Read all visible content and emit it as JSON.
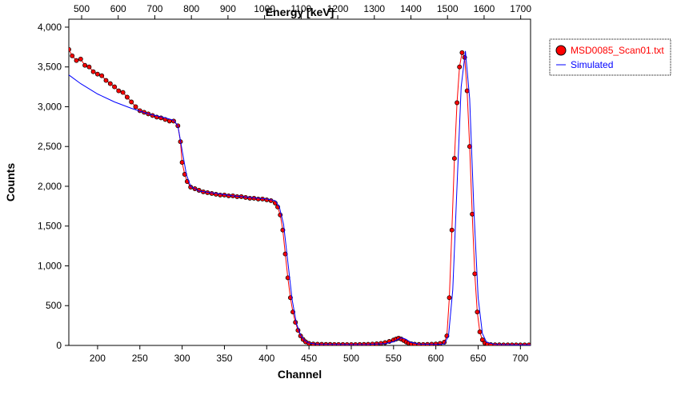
{
  "chart_data": {
    "type": "scatter",
    "title": "",
    "xlabel": "Channel",
    "ylabel": "Counts",
    "x2label": "Energy [keV]",
    "xlim": [
      166,
      712
    ],
    "ylim": [
      0,
      4100
    ],
    "x2lim": [
      465,
      1727
    ],
    "xticks": [
      200,
      250,
      300,
      350,
      400,
      450,
      500,
      550,
      600,
      650,
      700
    ],
    "xtick_labels": [
      "200",
      "250",
      "300",
      "350",
      "400",
      "450",
      "500",
      "550",
      "600",
      "650",
      "700"
    ],
    "yticks": [
      0,
      500,
      1000,
      1500,
      2000,
      2500,
      3000,
      3500,
      4000
    ],
    "ytick_labels": [
      "0",
      "500",
      "1,000",
      "1,500",
      "2,000",
      "2,500",
      "3,000",
      "3,500",
      "4,000"
    ],
    "x2ticks": [
      500,
      600,
      700,
      800,
      900,
      1000,
      1100,
      1200,
      1300,
      1400,
      1500,
      1600,
      1700
    ],
    "x2tick_labels": [
      "500",
      "600",
      "700",
      "800",
      "900",
      "1000",
      "1100",
      "1200",
      "1300",
      "1400",
      "1500",
      "1600",
      "1700"
    ],
    "grid": false,
    "legend_position": "right-top",
    "series": [
      {
        "name": "MSD0085_Scan01.txt",
        "kind": "markers",
        "color": "#ff0000",
        "edge_color": "#000000",
        "x": [
          166,
          170,
          175,
          180,
          185,
          190,
          195,
          200,
          205,
          210,
          215,
          220,
          225,
          230,
          235,
          240,
          245,
          250,
          255,
          260,
          265,
          270,
          275,
          280,
          285,
          290,
          295,
          298,
          300,
          303,
          306,
          310,
          315,
          320,
          325,
          330,
          335,
          340,
          345,
          350,
          355,
          360,
          365,
          370,
          375,
          380,
          385,
          390,
          395,
          400,
          405,
          410,
          413,
          416,
          419,
          422,
          425,
          428,
          431,
          434,
          437,
          440,
          443,
          446,
          450,
          455,
          460,
          465,
          470,
          475,
          480,
          485,
          490,
          495,
          500,
          505,
          510,
          515,
          520,
          525,
          530,
          535,
          540,
          545,
          550,
          553,
          556,
          559,
          562,
          565,
          568,
          571,
          575,
          580,
          585,
          590,
          595,
          600,
          605,
          610,
          613,
          616,
          619,
          622,
          625,
          628,
          631,
          634,
          637,
          640,
          643,
          646,
          649,
          652,
          655,
          658,
          661,
          665,
          670,
          675,
          680,
          685,
          690,
          695,
          700,
          705,
          710
        ],
        "y": [
          3720,
          3640,
          3580,
          3600,
          3520,
          3500,
          3440,
          3410,
          3390,
          3330,
          3290,
          3250,
          3200,
          3180,
          3120,
          3060,
          3000,
          2950,
          2930,
          2910,
          2890,
          2870,
          2860,
          2840,
          2820,
          2820,
          2760,
          2560,
          2300,
          2150,
          2060,
          1990,
          1970,
          1950,
          1930,
          1920,
          1910,
          1900,
          1890,
          1890,
          1880,
          1880,
          1870,
          1870,
          1860,
          1850,
          1850,
          1840,
          1840,
          1830,
          1820,
          1790,
          1740,
          1640,
          1450,
          1150,
          850,
          600,
          420,
          290,
          190,
          120,
          75,
          45,
          25,
          18,
          15,
          14,
          13,
          13,
          12,
          12,
          12,
          11,
          11,
          11,
          12,
          13,
          14,
          17,
          20,
          26,
          35,
          50,
          68,
          80,
          90,
          80,
          62,
          42,
          28,
          20,
          15,
          13,
          12,
          13,
          15,
          18,
          25,
          40,
          120,
          600,
          1450,
          2350,
          3050,
          3500,
          3680,
          3620,
          3200,
          2500,
          1650,
          900,
          420,
          170,
          70,
          30,
          15,
          10,
          8,
          8,
          7,
          7,
          7,
          7,
          7,
          7,
          7
        ]
      },
      {
        "name": "Simulated",
        "kind": "line",
        "color": "#0000ff",
        "x": [
          166,
          180,
          200,
          220,
          240,
          260,
          280,
          290,
          295,
          300,
          305,
          310,
          320,
          340,
          360,
          380,
          400,
          410,
          415,
          420,
          425,
          430,
          435,
          440,
          445,
          450,
          460,
          480,
          500,
          520,
          540,
          550,
          555,
          560,
          565,
          570,
          580,
          600,
          610,
          615,
          620,
          625,
          630,
          635,
          640,
          645,
          650,
          655,
          660,
          670,
          690,
          712
        ],
        "y": [
          3400,
          3290,
          3160,
          3060,
          2980,
          2910,
          2860,
          2830,
          2760,
          2450,
          2150,
          2000,
          1940,
          1910,
          1880,
          1860,
          1840,
          1820,
          1740,
          1520,
          1050,
          580,
          280,
          130,
          60,
          30,
          14,
          12,
          11,
          13,
          22,
          45,
          75,
          95,
          75,
          40,
          16,
          12,
          18,
          120,
          700,
          2000,
          3250,
          3700,
          3100,
          1700,
          600,
          150,
          40,
          12,
          8,
          7
        ]
      }
    ]
  }
}
